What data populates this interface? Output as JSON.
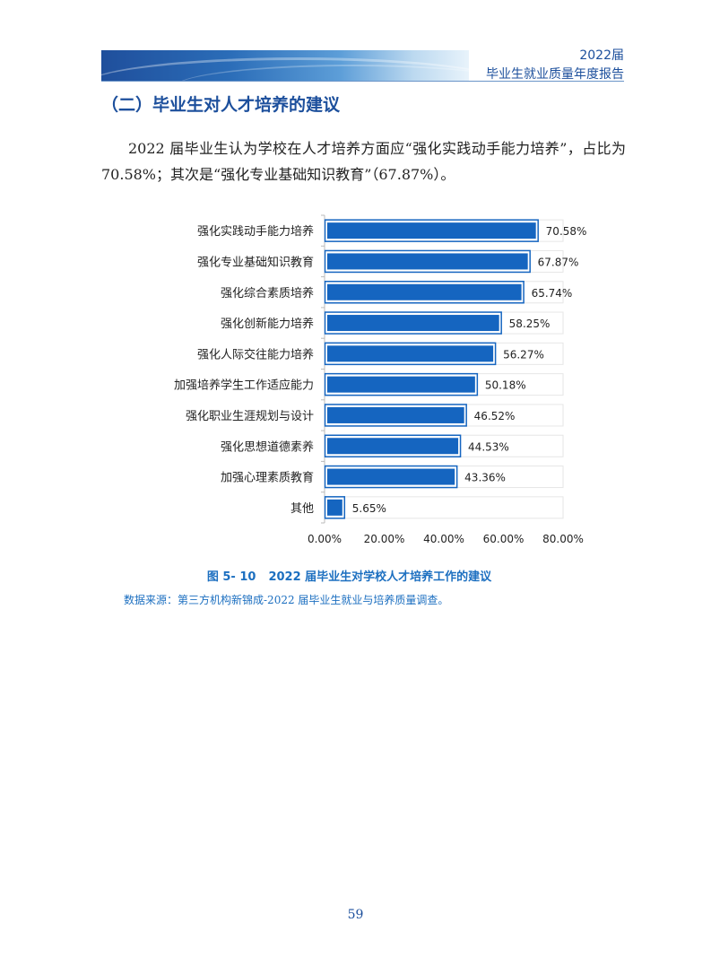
{
  "header": {
    "year_label": "2022届",
    "report_title": "毕业生就业质量年度报告"
  },
  "section": {
    "title": "（二）毕业生对人才培养的建议"
  },
  "paragraph": "2022 届毕业生认为学校在人才培养方面应“强化实践动手能力培养”，占比为 70.58%；其次是“强化专业基础知识教育”（67.87%）。",
  "chart_data": {
    "type": "bar",
    "orientation": "horizontal",
    "categories": [
      "强化实践动手能力培养",
      "强化专业基础知识教育",
      "强化综合素质培养",
      "强化创新能力培养",
      "强化人际交往能力培养",
      "加强培养学生工作适应能力",
      "强化职业生涯规划与设计",
      "强化思想道德素养",
      "加强心理素质教育",
      "其他"
    ],
    "values": [
      70.58,
      67.87,
      65.74,
      58.25,
      56.27,
      50.18,
      46.52,
      44.53,
      43.36,
      5.65
    ],
    "value_labels": [
      "70.58%",
      "67.87%",
      "65.74%",
      "58.25%",
      "56.27%",
      "50.18%",
      "46.52%",
      "44.53%",
      "43.36%",
      "5.65%"
    ],
    "xlim": [
      0,
      80
    ],
    "x_ticks": [
      "0.00%",
      "20.00%",
      "40.00%",
      "60.00%",
      "80.00%"
    ],
    "bar_color": "#1565c0",
    "grid": false,
    "legend": "none"
  },
  "figure": {
    "number": "图 5- 10",
    "caption": "2022 届毕业生对学校人才培养工作的建议",
    "source": "数据来源：第三方机构新锦成-2022 届毕业生就业与培养质量调查。"
  },
  "page_number": "59"
}
